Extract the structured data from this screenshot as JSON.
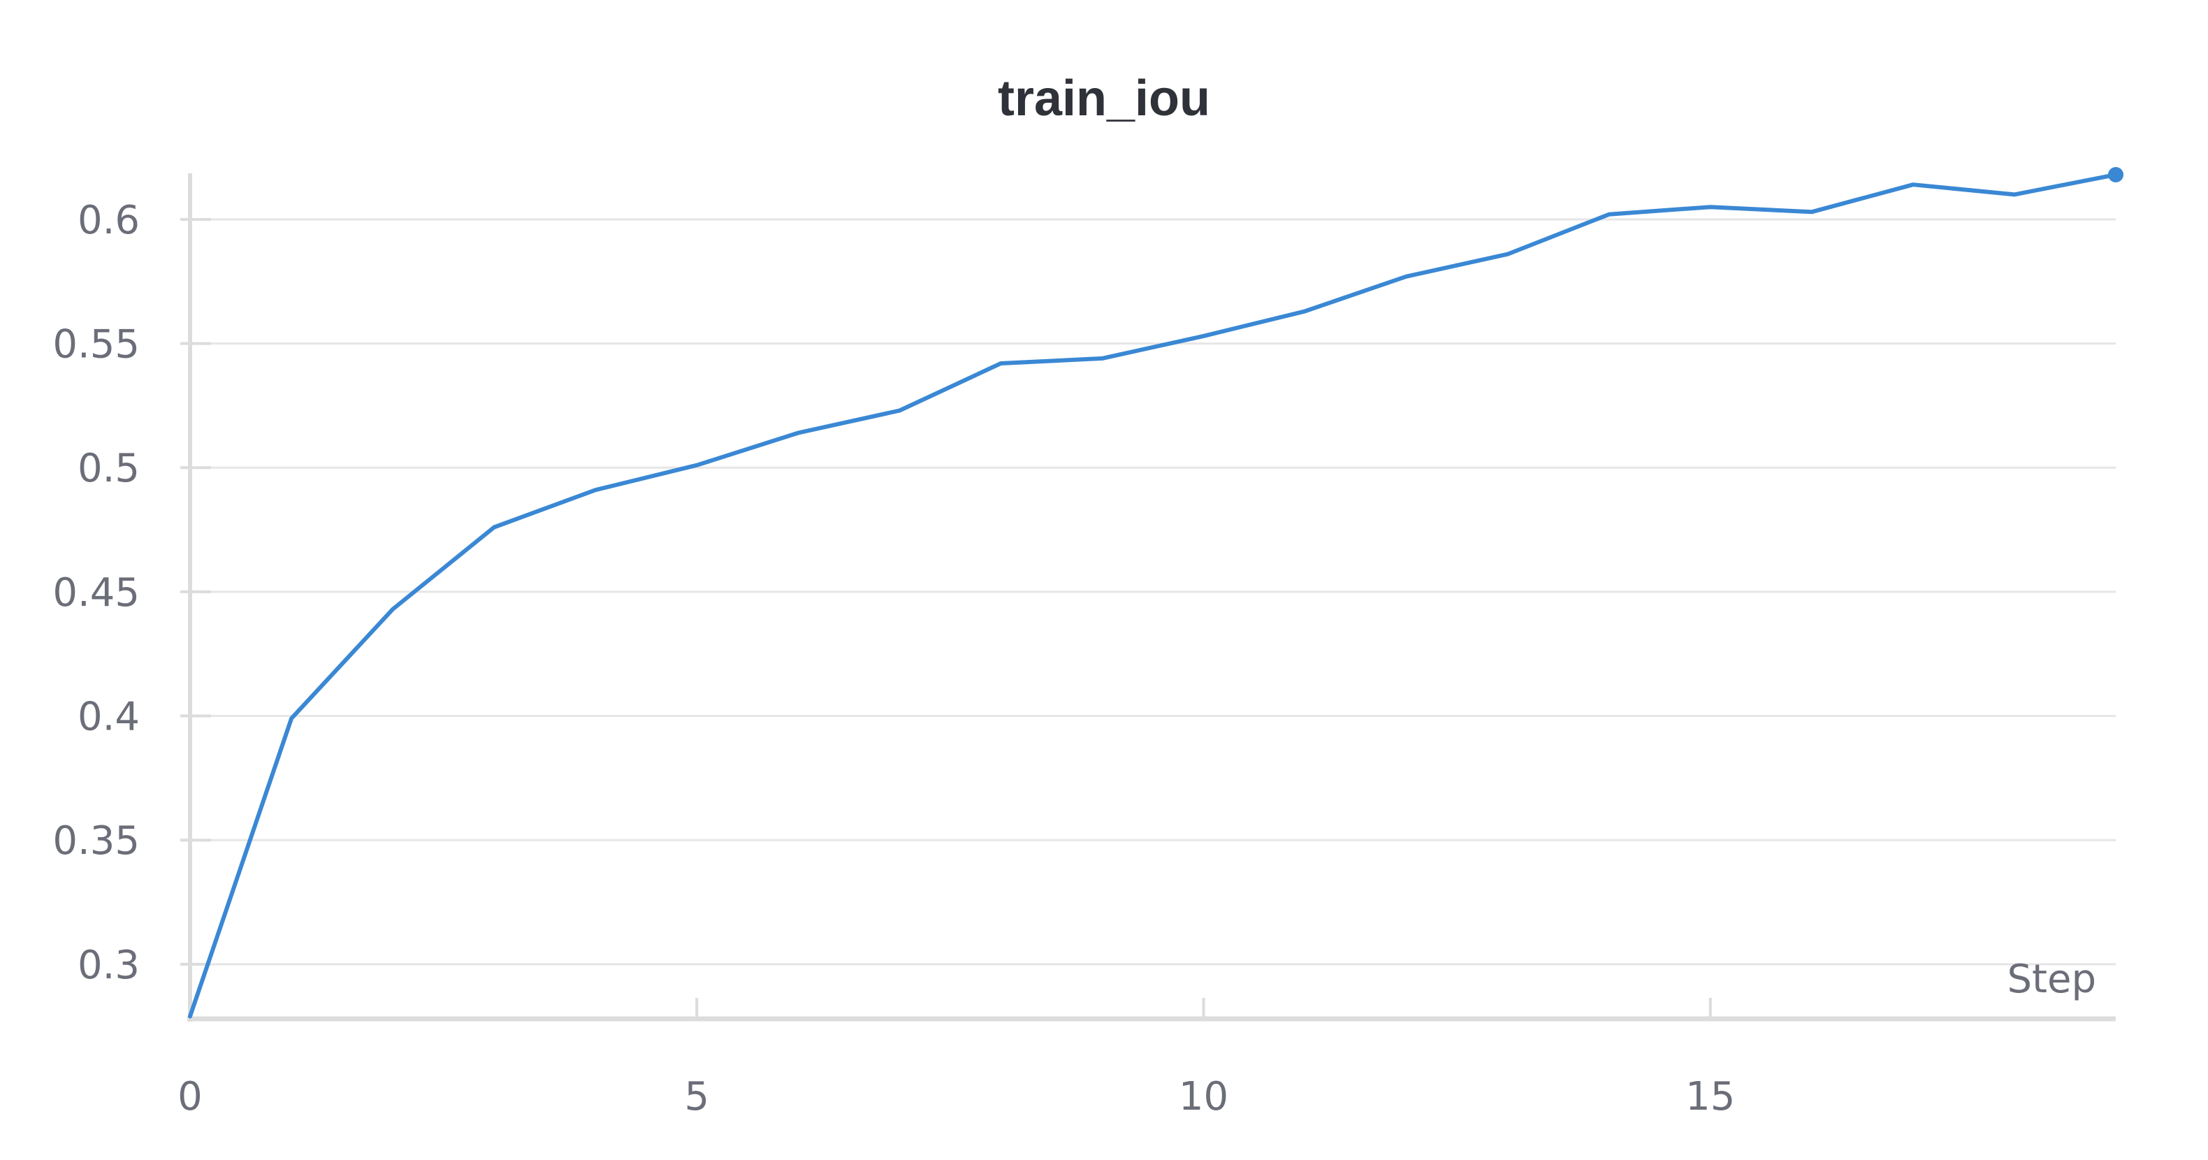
{
  "chart_data": {
    "type": "line",
    "title": "train_iou",
    "xlabel": "Step",
    "ylabel": "",
    "xlim": [
      0,
      19
    ],
    "ylim": [
      0.278,
      0.618
    ],
    "x_ticks": [
      0,
      5,
      10,
      15
    ],
    "y_ticks": [
      0.3,
      0.35,
      0.4,
      0.45,
      0.5,
      0.55,
      0.6
    ],
    "grid": true,
    "legend": "none",
    "series": [
      {
        "color": "#3a88d4",
        "x": [
          0,
          1,
          2,
          3,
          4,
          5,
          6,
          7,
          8,
          9,
          10,
          11,
          12,
          13,
          14,
          15,
          16,
          17,
          18,
          19
        ],
        "values": [
          0.279,
          0.399,
          0.443,
          0.476,
          0.491,
          0.501,
          0.514,
          0.523,
          0.542,
          0.544,
          0.553,
          0.563,
          0.577,
          0.586,
          0.602,
          0.605,
          0.603,
          0.614,
          0.61,
          0.618
        ]
      }
    ]
  },
  "colors": {
    "grid": "#e6e6e6",
    "axis": "#dcdcdc",
    "line": "#3a88d4"
  }
}
